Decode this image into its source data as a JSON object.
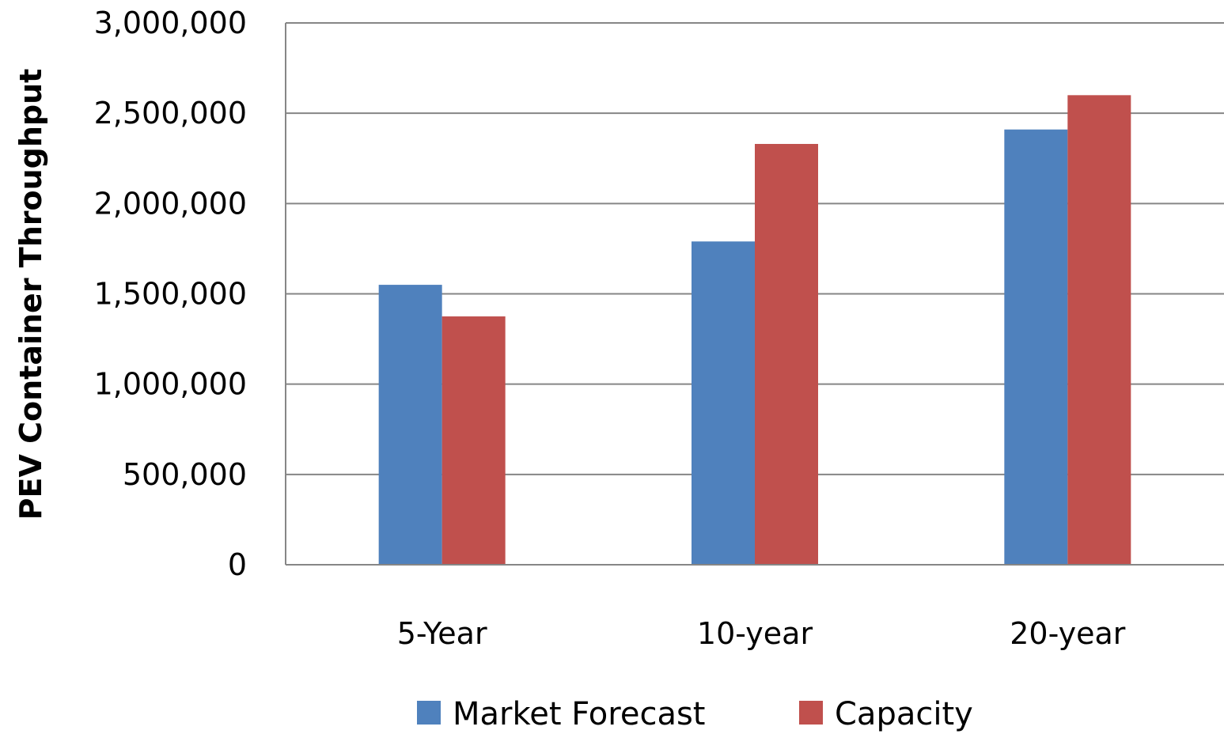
{
  "chart_data": {
    "type": "bar",
    "title": "",
    "xlabel": "",
    "ylabel": "PEV Container Throughput",
    "categories": [
      "5-Year",
      "10-year",
      "20-year"
    ],
    "series": [
      {
        "name": "Market Forecast",
        "color": "#4f81bd",
        "values": [
          1550000,
          1790000,
          2410000
        ]
      },
      {
        "name": "Capacity",
        "color": "#c0504d",
        "values": [
          1375000,
          2330000,
          2600000
        ]
      }
    ],
    "ylim": [
      0,
      3000000
    ],
    "yticks": [
      0,
      500000,
      1000000,
      1500000,
      2000000,
      2500000,
      3000000
    ],
    "ytick_labels": [
      "0",
      "500,000",
      "1,000,000",
      "1,500,000",
      "2,000,000",
      "2,500,000",
      "3,000,000"
    ],
    "grid": true,
    "legend_position": "bottom"
  }
}
